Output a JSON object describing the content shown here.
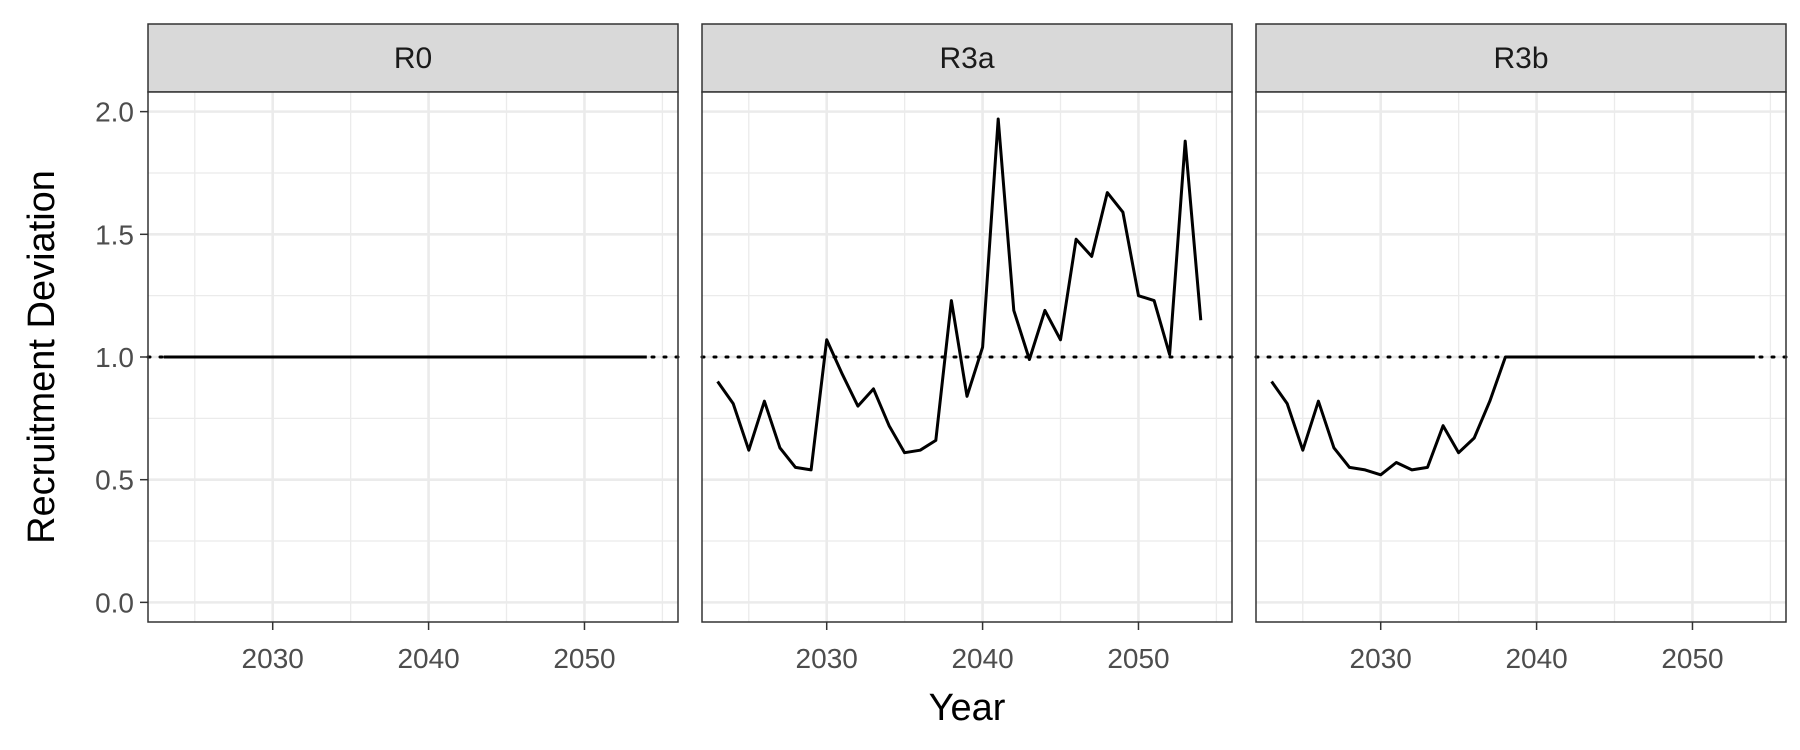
{
  "chart_data": {
    "type": "line",
    "xlabel": "Year",
    "ylabel": "Recruitment Deviation",
    "xlim": [
      2022,
      2056
    ],
    "ylim": [
      -0.08,
      2.08
    ],
    "x_ticks": [
      2030,
      2040,
      2050
    ],
    "x_tick_labels": [
      "2030",
      "2040",
      "2050"
    ],
    "y_ticks": [
      0.0,
      0.5,
      1.0,
      1.5,
      2.0
    ],
    "y_tick_labels": [
      "0.0",
      "0.5",
      "1.0",
      "1.5",
      "2.0"
    ],
    "grid": true,
    "reference_line": {
      "y": 1.0,
      "style": "dotted"
    },
    "panels": [
      {
        "label": "R0",
        "x": [
          2023,
          2024,
          2025,
          2026,
          2027,
          2028,
          2029,
          2030,
          2031,
          2032,
          2033,
          2034,
          2035,
          2036,
          2037,
          2038,
          2039,
          2040,
          2041,
          2042,
          2043,
          2044,
          2045,
          2046,
          2047,
          2048,
          2049,
          2050,
          2051,
          2052,
          2053,
          2054
        ],
        "y": [
          1,
          1,
          1,
          1,
          1,
          1,
          1,
          1,
          1,
          1,
          1,
          1,
          1,
          1,
          1,
          1,
          1,
          1,
          1,
          1,
          1,
          1,
          1,
          1,
          1,
          1,
          1,
          1,
          1,
          1,
          1,
          1
        ]
      },
      {
        "label": "R3a",
        "x": [
          2023,
          2024,
          2025,
          2026,
          2027,
          2028,
          2029,
          2030,
          2031,
          2032,
          2033,
          2034,
          2035,
          2036,
          2037,
          2038,
          2039,
          2040,
          2041,
          2042,
          2043,
          2044,
          2045,
          2046,
          2047,
          2048,
          2049,
          2050,
          2051,
          2052,
          2053,
          2054
        ],
        "y": [
          0.9,
          0.81,
          0.62,
          0.82,
          0.63,
          0.55,
          0.54,
          1.07,
          0.93,
          0.8,
          0.87,
          0.72,
          0.61,
          0.62,
          0.66,
          1.23,
          0.84,
          1.04,
          1.97,
          1.19,
          0.99,
          1.19,
          1.07,
          1.48,
          1.41,
          1.67,
          1.59,
          1.25,
          1.23,
          1.01,
          1.88,
          1.15
        ]
      },
      {
        "label": "R3b",
        "x": [
          2023,
          2024,
          2025,
          2026,
          2027,
          2028,
          2029,
          2030,
          2031,
          2032,
          2033,
          2034,
          2035,
          2036,
          2037,
          2038,
          2039,
          2040,
          2041,
          2042,
          2043,
          2044,
          2045,
          2046,
          2047,
          2048,
          2049,
          2050,
          2051,
          2052,
          2053,
          2054
        ],
        "y": [
          0.9,
          0.81,
          0.62,
          0.82,
          0.63,
          0.55,
          0.54,
          0.52,
          0.57,
          0.54,
          0.55,
          0.72,
          0.61,
          0.67,
          0.82,
          1,
          1,
          1,
          1,
          1,
          1,
          1,
          1,
          1,
          1,
          1,
          1,
          1,
          1,
          1,
          1,
          1
        ]
      }
    ]
  }
}
